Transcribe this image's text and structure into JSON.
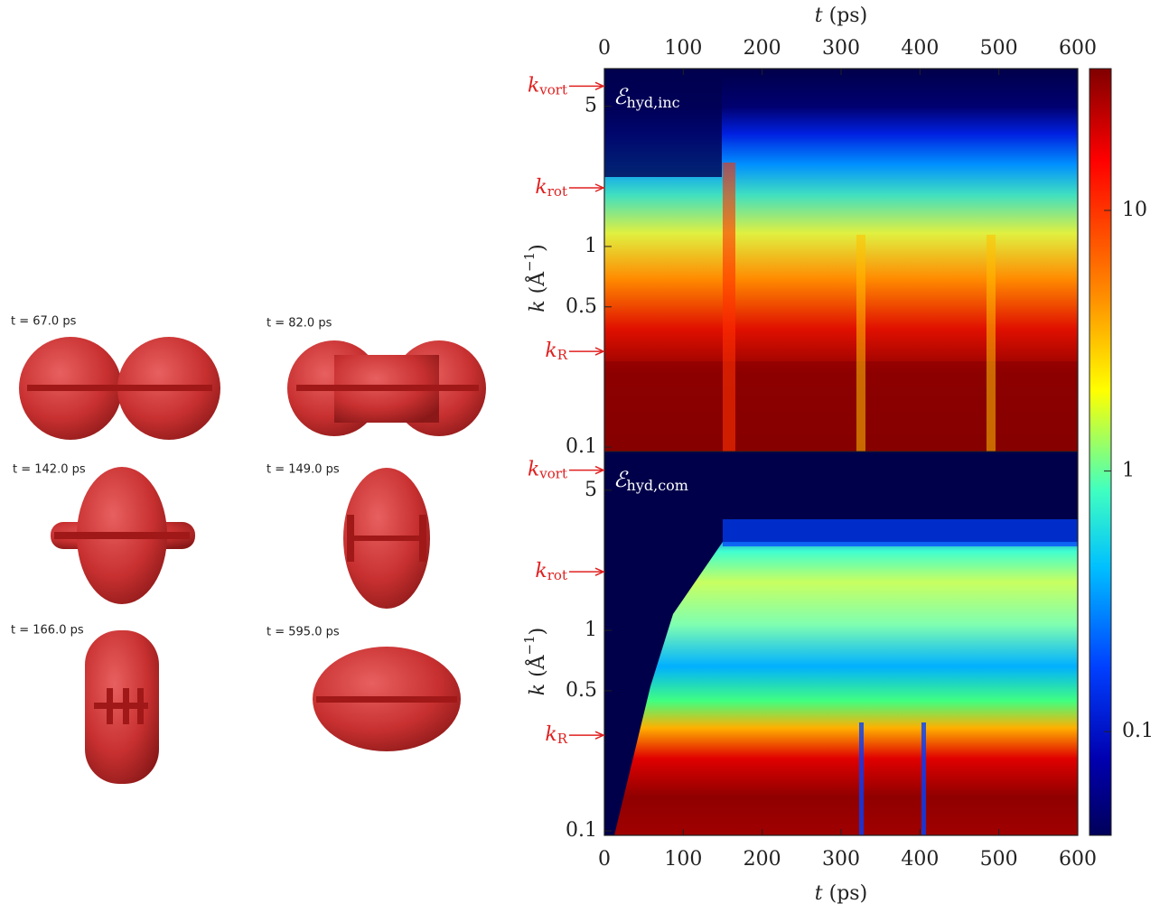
{
  "snapshots": [
    "t = 67.0 ps",
    "t = 82.0 ps",
    "t = 142.0 ps",
    "t = 149.0 ps",
    "t = 166.0 ps",
    "t = 595.0 ps"
  ],
  "chart_data": [
    {
      "type": "heatmap",
      "panel_label": {
        "symbol": "ℰ",
        "sub": "hyd,inc"
      },
      "x_label": {
        "var": "t",
        "unit": "(ps)"
      },
      "x_axis_side": "top",
      "y_label": {
        "var": "k",
        "unit_open": "(Å",
        "exp": "−1",
        "unit_close": ")"
      },
      "xlim": [
        0,
        600
      ],
      "xticks": [
        0,
        100,
        200,
        300,
        400,
        500,
        600
      ],
      "ylim": [
        0.095,
        7.7
      ],
      "yticks": [
        0.1,
        0.5,
        1,
        5
      ],
      "log_y": true,
      "annotations": [
        {
          "symbol": "k",
          "sub": "vort",
          "value": 6.3
        },
        {
          "symbol": "k",
          "sub": "rot",
          "value": 1.96
        },
        {
          "symbol": "k",
          "sub": "R",
          "value": 0.3
        }
      ]
    },
    {
      "type": "heatmap",
      "panel_label": {
        "symbol": "ℰ",
        "sub": "hyd,com"
      },
      "x_label": {
        "var": "t",
        "unit": "(ps)"
      },
      "x_axis_side": "bottom",
      "y_label": {
        "var": "k",
        "unit_open": "(Å",
        "exp": "−1",
        "unit_close": ")"
      },
      "xlim": [
        0,
        600
      ],
      "xticks": [
        0,
        100,
        200,
        300,
        400,
        500,
        600
      ],
      "ylim": [
        0.095,
        7.8
      ],
      "yticks": [
        0.1,
        0.5,
        1,
        5
      ],
      "log_y": true,
      "annotations": [
        {
          "symbol": "k",
          "sub": "vort",
          "value": 6.3
        },
        {
          "symbol": "k",
          "sub": "rot",
          "value": 1.96
        },
        {
          "symbol": "k",
          "sub": "R",
          "value": 0.3
        }
      ]
    }
  ],
  "colorbar": {
    "lim": [
      0.04,
      35
    ],
    "ticks": [
      0.1,
      1,
      10
    ],
    "log": true
  }
}
